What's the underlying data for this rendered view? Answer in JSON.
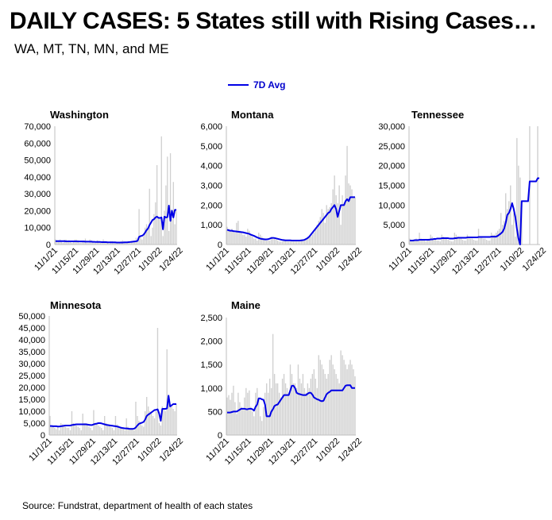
{
  "header": {
    "title": "DAILY CASES: 5 States still with Rising Cases…",
    "subtitle": "WA, MT, TN, MN, and ME"
  },
  "legend": {
    "label": "7D Avg",
    "color": "#0000e6"
  },
  "source": "Source: Fundstrat, department of health of each states",
  "colors": {
    "bars": "#d0d0d0",
    "line": "#0000e6",
    "axis": "#bfbfbf"
  },
  "chart_data": [
    {
      "type": "bar+line",
      "title": "Washington",
      "x_ticks": [
        "11/1/21",
        "11/15/21",
        "11/29/21",
        "12/13/21",
        "12/27/21",
        "1/10/22",
        "1/24/22"
      ],
      "ylim": [
        0,
        70000
      ],
      "y_ticks": [
        "0",
        "10,000",
        "20,000",
        "30,000",
        "40,000",
        "50,000",
        "60,000",
        "70,000"
      ],
      "series": [
        {
          "name": "Daily cases",
          "values": [
            3000,
            2500,
            2500,
            3000,
            1500,
            1000,
            2800,
            3000,
            2000,
            2500,
            1500,
            1000,
            2000,
            3000,
            3000,
            2500,
            1000,
            1000,
            1500,
            2000,
            3500,
            1000,
            800,
            3000,
            2500,
            1500,
            1000,
            1000,
            2500,
            2000,
            1500,
            1000,
            3000,
            2000,
            1500,
            1000,
            500,
            2000,
            2000,
            1500,
            1000,
            1000,
            1500,
            1500,
            2000,
            2500,
            1500,
            1500,
            1000,
            1000,
            1500,
            2000,
            2000,
            2000,
            4000,
            2000,
            21000,
            5000,
            3000,
            5000,
            10000,
            12000,
            9000,
            33000,
            5000,
            10000,
            18000,
            25000,
            47000,
            16000,
            15000,
            64000,
            5000,
            20000,
            35000,
            52000,
            8000,
            54000,
            15000,
            37000,
            12000,
            20000
          ]
        },
        {
          "name": "7D Avg",
          "values": [
            2000,
            2000,
            2000,
            2000,
            2000,
            2000,
            2000,
            1900,
            1900,
            1900,
            1900,
            1900,
            1900,
            1900,
            1900,
            1800,
            1800,
            1800,
            1800,
            1800,
            1700,
            1700,
            1700,
            1700,
            1700,
            1600,
            1600,
            1500,
            1500,
            1500,
            1500,
            1400,
            1400,
            1400,
            1400,
            1300,
            1300,
            1300,
            1300,
            1300,
            1300,
            1200,
            1200,
            1200,
            1200,
            1200,
            1300,
            1300,
            1300,
            1400,
            1500,
            1600,
            1700,
            1800,
            1900,
            2200,
            4500,
            5000,
            5200,
            5800,
            7000,
            8500,
            9500,
            11500,
            13000,
            14500,
            15000,
            16000,
            16500,
            15800,
            15700,
            16000,
            9000,
            16500,
            16000,
            16200,
            23000,
            14000,
            20000,
            16000,
            20500,
            20500
          ]
        }
      ]
    },
    {
      "type": "bar+line",
      "title": "Montana",
      "x_ticks": [
        "11/1/21",
        "11/15/21",
        "11/29/21",
        "12/13/21",
        "12/27/21",
        "1/10/22",
        "1/24/22"
      ],
      "ylim": [
        0,
        6000
      ],
      "y_ticks": [
        "0",
        "1,000",
        "2,000",
        "3,000",
        "4,000",
        "5,000",
        "6,000"
      ],
      "series": [
        {
          "name": "Daily cases",
          "values": [
            900,
            800,
            700,
            800,
            700,
            600,
            1100,
            1200,
            700,
            600,
            500,
            500,
            400,
            800,
            700,
            500,
            400,
            300,
            300,
            200,
            600,
            500,
            400,
            300,
            250,
            200,
            200,
            200,
            400,
            350,
            300,
            250,
            200,
            150,
            150,
            150,
            200,
            200,
            150,
            150,
            150,
            150,
            150,
            150,
            150,
            150,
            150,
            200,
            200,
            250,
            300,
            300,
            350,
            400,
            500,
            600,
            800,
            1000,
            1200,
            1400,
            1800,
            1600,
            1100,
            2000,
            1800,
            1900,
            2100,
            2800,
            3500,
            2500,
            2100,
            3000,
            1000,
            2500,
            2000,
            3500,
            5000,
            3100,
            3000,
            2800,
            2400,
            2400
          ]
        },
        {
          "name": "7D Avg",
          "values": [
            750,
            720,
            700,
            700,
            680,
            670,
            660,
            650,
            640,
            630,
            620,
            600,
            580,
            560,
            540,
            500,
            470,
            440,
            400,
            360,
            330,
            300,
            280,
            270,
            260,
            260,
            270,
            300,
            330,
            340,
            330,
            310,
            290,
            270,
            250,
            230,
            220,
            210,
            210,
            210,
            210,
            200,
            200,
            200,
            200,
            200,
            200,
            210,
            220,
            240,
            280,
            330,
            400,
            500,
            600,
            700,
            800,
            900,
            1000,
            1100,
            1200,
            1300,
            1400,
            1500,
            1600,
            1650,
            1800,
            1900,
            2000,
            1800,
            1400,
            1700,
            2000,
            2000,
            2000,
            2200,
            2300,
            2200,
            2400,
            2400,
            2400,
            2400
          ]
        }
      ]
    },
    {
      "type": "bar+line",
      "title": "Tennessee",
      "x_ticks": [
        "11/1/21",
        "11/15/21",
        "11/29/21",
        "12/13/21",
        "12/27/21",
        "1/10/22",
        "1/24/22"
      ],
      "ylim": [
        0,
        30000
      ],
      "y_ticks": [
        "0",
        "5,000",
        "10,000",
        "15,000",
        "20,000",
        "25,000",
        "30,000"
      ],
      "series": [
        {
          "name": "Daily cases",
          "values": [
            1500,
            1000,
            1000,
            1300,
            1500,
            1200,
            3000,
            1500,
            1200,
            1000,
            800,
            1000,
            1500,
            2500,
            2000,
            1500,
            1200,
            1000,
            1000,
            800,
            2500,
            2000,
            1500,
            1500,
            1200,
            1000,
            800,
            800,
            3000,
            2500,
            2000,
            1500,
            1500,
            1200,
            1000,
            1000,
            2500,
            2000,
            1500,
            1500,
            1200,
            1000,
            1000,
            4000,
            2000,
            2000,
            1500,
            1500,
            1200,
            1000,
            1000,
            3000,
            2500,
            2500,
            3000,
            3500,
            4000,
            8000,
            5000,
            6000,
            13000,
            9000,
            11000,
            15000,
            5000,
            8000,
            2000,
            27000,
            20000,
            17000,
            10000,
            0,
            0,
            0,
            0,
            30000,
            0,
            0,
            0,
            0,
            30000,
            0
          ]
        },
        {
          "name": "7D Avg",
          "values": [
            1000,
            1000,
            1000,
            1100,
            1100,
            1100,
            1200,
            1200,
            1200,
            1200,
            1200,
            1200,
            1200,
            1300,
            1300,
            1400,
            1400,
            1500,
            1500,
            1500,
            1600,
            1600,
            1600,
            1600,
            1600,
            1500,
            1500,
            1500,
            1600,
            1600,
            1700,
            1700,
            1700,
            1700,
            1700,
            1700,
            1800,
            1800,
            1800,
            1800,
            1800,
            1800,
            1800,
            1900,
            1900,
            1900,
            1900,
            1900,
            1900,
            1900,
            1900,
            2000,
            2000,
            2000,
            2000,
            2200,
            2500,
            2800,
            3200,
            4000,
            5500,
            7500,
            8000,
            9000,
            10500,
            9000,
            7000,
            4000,
            1500,
            0,
            11000,
            11000,
            11000,
            11000,
            11000,
            16000,
            16000,
            16000,
            16000,
            16000,
            16800,
            16800
          ]
        }
      ]
    },
    {
      "type": "bar+line",
      "title": "Minnesota",
      "x_ticks": [
        "11/1/21",
        "11/15/21",
        "11/29/21",
        "12/13/21",
        "12/27/21",
        "1/10/22",
        "1/24/22"
      ],
      "ylim": [
        0,
        50000
      ],
      "y_ticks": [
        "0",
        "5,000",
        "10,000",
        "15,000",
        "20,000",
        "25,000",
        "30,000",
        "35,000",
        "40,000",
        "45,000",
        "50,000"
      ],
      "series": [
        {
          "name": "Daily cases",
          "values": [
            8000,
            4000,
            3500,
            3000,
            2500,
            3500,
            2000,
            5000,
            4500,
            4000,
            3500,
            3000,
            3000,
            2000,
            10000,
            5000,
            4500,
            4000,
            3500,
            3000,
            2000,
            9000,
            5000,
            5000,
            4500,
            3500,
            3000,
            2000,
            10500,
            5000,
            4500,
            4000,
            3500,
            3000,
            2000,
            8000,
            5000,
            4500,
            4000,
            3500,
            3000,
            2000,
            8000,
            4500,
            4000,
            3500,
            3000,
            2500,
            2000,
            7000,
            3500,
            3000,
            3000,
            2500,
            2000,
            14000,
            8000,
            6000,
            5000,
            4000,
            3500,
            10000,
            16000,
            12000,
            10000,
            9000,
            8000,
            7000,
            10000,
            45000,
            5000,
            4000,
            12000,
            11000,
            10000,
            36000,
            17000,
            13000,
            12000,
            11000,
            10000,
            13000
          ]
        },
        {
          "name": "7D Avg",
          "values": [
            3800,
            3800,
            3700,
            3700,
            3700,
            3600,
            3600,
            3700,
            3800,
            3900,
            4000,
            4000,
            4000,
            4000,
            4200,
            4300,
            4400,
            4500,
            4500,
            4500,
            4500,
            4500,
            4500,
            4500,
            4400,
            4300,
            4200,
            4200,
            4500,
            4700,
            4800,
            5000,
            5000,
            4900,
            4700,
            4500,
            4300,
            4200,
            4100,
            4000,
            3900,
            3800,
            3700,
            3600,
            3400,
            3200,
            3000,
            2900,
            2800,
            2800,
            2700,
            2600,
            2600,
            2600,
            2700,
            3200,
            4000,
            4700,
            5000,
            5200,
            5500,
            6500,
            8000,
            8600,
            9000,
            9500,
            10000,
            10500,
            10600,
            10800,
            9000,
            6000,
            11000,
            11000,
            11000,
            11200,
            16500,
            12000,
            12500,
            13000,
            13000,
            13000
          ]
        }
      ]
    },
    {
      "type": "bar+line",
      "title": "Maine",
      "x_ticks": [
        "11/1/21",
        "11/15/21",
        "11/29/21",
        "12/13/21",
        "12/27/21",
        "1/10/22",
        "1/24/22"
      ],
      "ylim": [
        0,
        2500
      ],
      "y_ticks": [
        "0",
        "500",
        "1,000",
        "1,500",
        "2,000",
        "2,500"
      ],
      "series": [
        {
          "name": "Daily cases",
          "values": [
            800,
            850,
            750,
            900,
            1050,
            700,
            450,
            900,
            700,
            600,
            550,
            800,
            1000,
            900,
            950,
            600,
            500,
            400,
            900,
            1000,
            800,
            400,
            300,
            600,
            900,
            1100,
            900,
            1200,
            1000,
            2150,
            1300,
            1100,
            1100,
            900,
            800,
            1200,
            1300,
            1100,
            1000,
            900,
            1500,
            1300,
            1100,
            1100,
            1000,
            1500,
            1200,
            1100,
            1300,
            1000,
            900,
            1100,
            1000,
            1200,
            1300,
            1400,
            1200,
            1000,
            1700,
            1600,
            1500,
            1400,
            1300,
            1200,
            1300,
            1600,
            1700,
            1500,
            1400,
            1300,
            1200,
            1100,
            1800,
            1700,
            1600,
            1500,
            1400,
            1500,
            1600,
            1500,
            1400,
            1250
          ]
        },
        {
          "name": "7D Avg",
          "values": [
            480,
            480,
            480,
            490,
            500,
            500,
            500,
            520,
            540,
            560,
            560,
            560,
            550,
            550,
            560,
            560,
            550,
            520,
            600,
            650,
            780,
            780,
            760,
            750,
            650,
            400,
            400,
            400,
            500,
            550,
            620,
            640,
            650,
            700,
            750,
            800,
            850,
            850,
            850,
            850,
            950,
            1050,
            1050,
            1000,
            900,
            880,
            870,
            860,
            850,
            850,
            850,
            880,
            900,
            900,
            860,
            800,
            780,
            760,
            750,
            730,
            720,
            730,
            800,
            870,
            900,
            920,
            950,
            950,
            950,
            950,
            950,
            950,
            950,
            950,
            1000,
            1050,
            1060,
            1060,
            1060,
            1000,
            1000,
            1000
          ]
        }
      ]
    }
  ]
}
